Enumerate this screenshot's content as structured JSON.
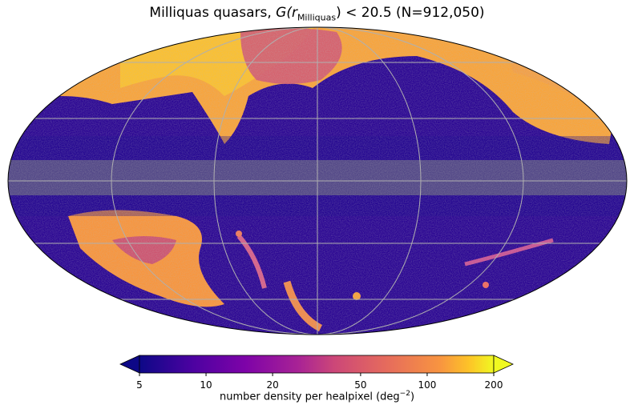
{
  "title": {
    "prefix": "Milliquas quasars, ",
    "expr_g": "G(r",
    "expr_sub": "Milliquas",
    "expr_tail": ") < 20.5",
    "suffix": " (N=912,050)"
  },
  "map": {
    "projection": "Mollweide",
    "grid": true,
    "masked_color": "#808080"
  },
  "colorbar": {
    "scale": "log",
    "range": [
      5,
      200
    ],
    "extend": "both",
    "colormap": "plasma",
    "ticks": [
      "5",
      "10",
      "20",
      "50",
      "100",
      "200"
    ],
    "tick_values": [
      5,
      10,
      20,
      50,
      100,
      200
    ],
    "label_main": "number density per healpixel (deg",
    "label_exp": "−2",
    "label_end": ")"
  },
  "colors": {
    "low": "#0d0887",
    "mid": "#cc4778",
    "high": "#f0f921",
    "masked": "#808080",
    "grid": "#b0b0b0"
  }
}
